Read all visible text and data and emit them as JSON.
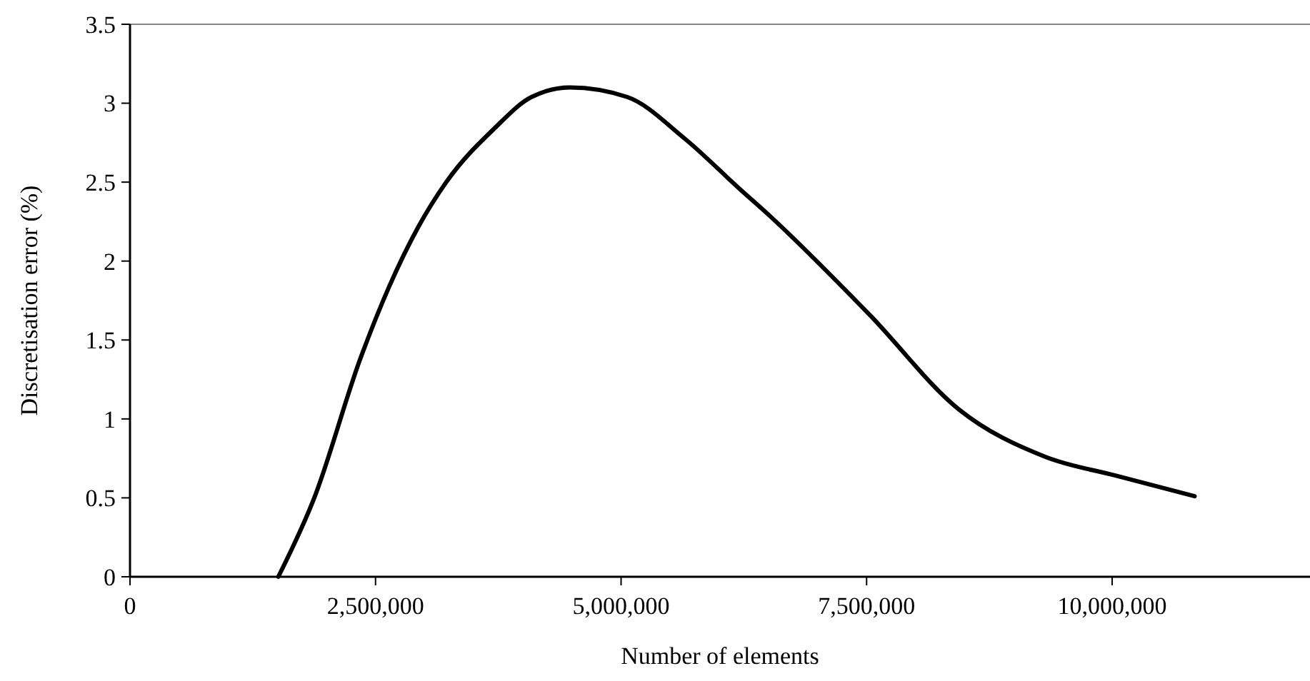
{
  "chart_data": {
    "type": "line",
    "xlabel": "Number of elements",
    "ylabel": "Discretisation error (%)",
    "x": [
      1510000,
      1870000,
      2350000,
      2640000,
      2930000,
      3220000,
      3710000,
      4090000,
      4480000,
      5060000,
      5640000,
      6220000,
      6490000,
      7530000,
      8440000,
      9320000,
      10040000,
      10840000
    ],
    "series": [
      {
        "color": "#000000",
        "values": [
          0,
          0.49,
          1.39,
          1.84,
          2.21,
          2.5,
          2.84,
          3.04,
          3.1,
          3.04,
          2.78,
          2.45,
          2.3,
          1.66,
          1.06,
          0.76,
          0.64,
          0.51
        ]
      }
    ],
    "xlim": [
      0,
      12000000
    ],
    "xticks": [
      0,
      {
        "value": 2500000,
        "label": "2,500,000"
      },
      {
        "value": 5000000,
        "label": "5,000,000"
      },
      {
        "value": 7500000,
        "label": "7,500,000"
      },
      {
        "value": 10000000,
        "label": "10,000,000"
      }
    ],
    "ylim": [
      0,
      3.5
    ],
    "yticks": [
      0,
      0.5,
      1,
      1.5,
      2,
      2.5,
      3,
      3.5
    ],
    "grid": false,
    "marker": "none",
    "line_style": "solid"
  }
}
